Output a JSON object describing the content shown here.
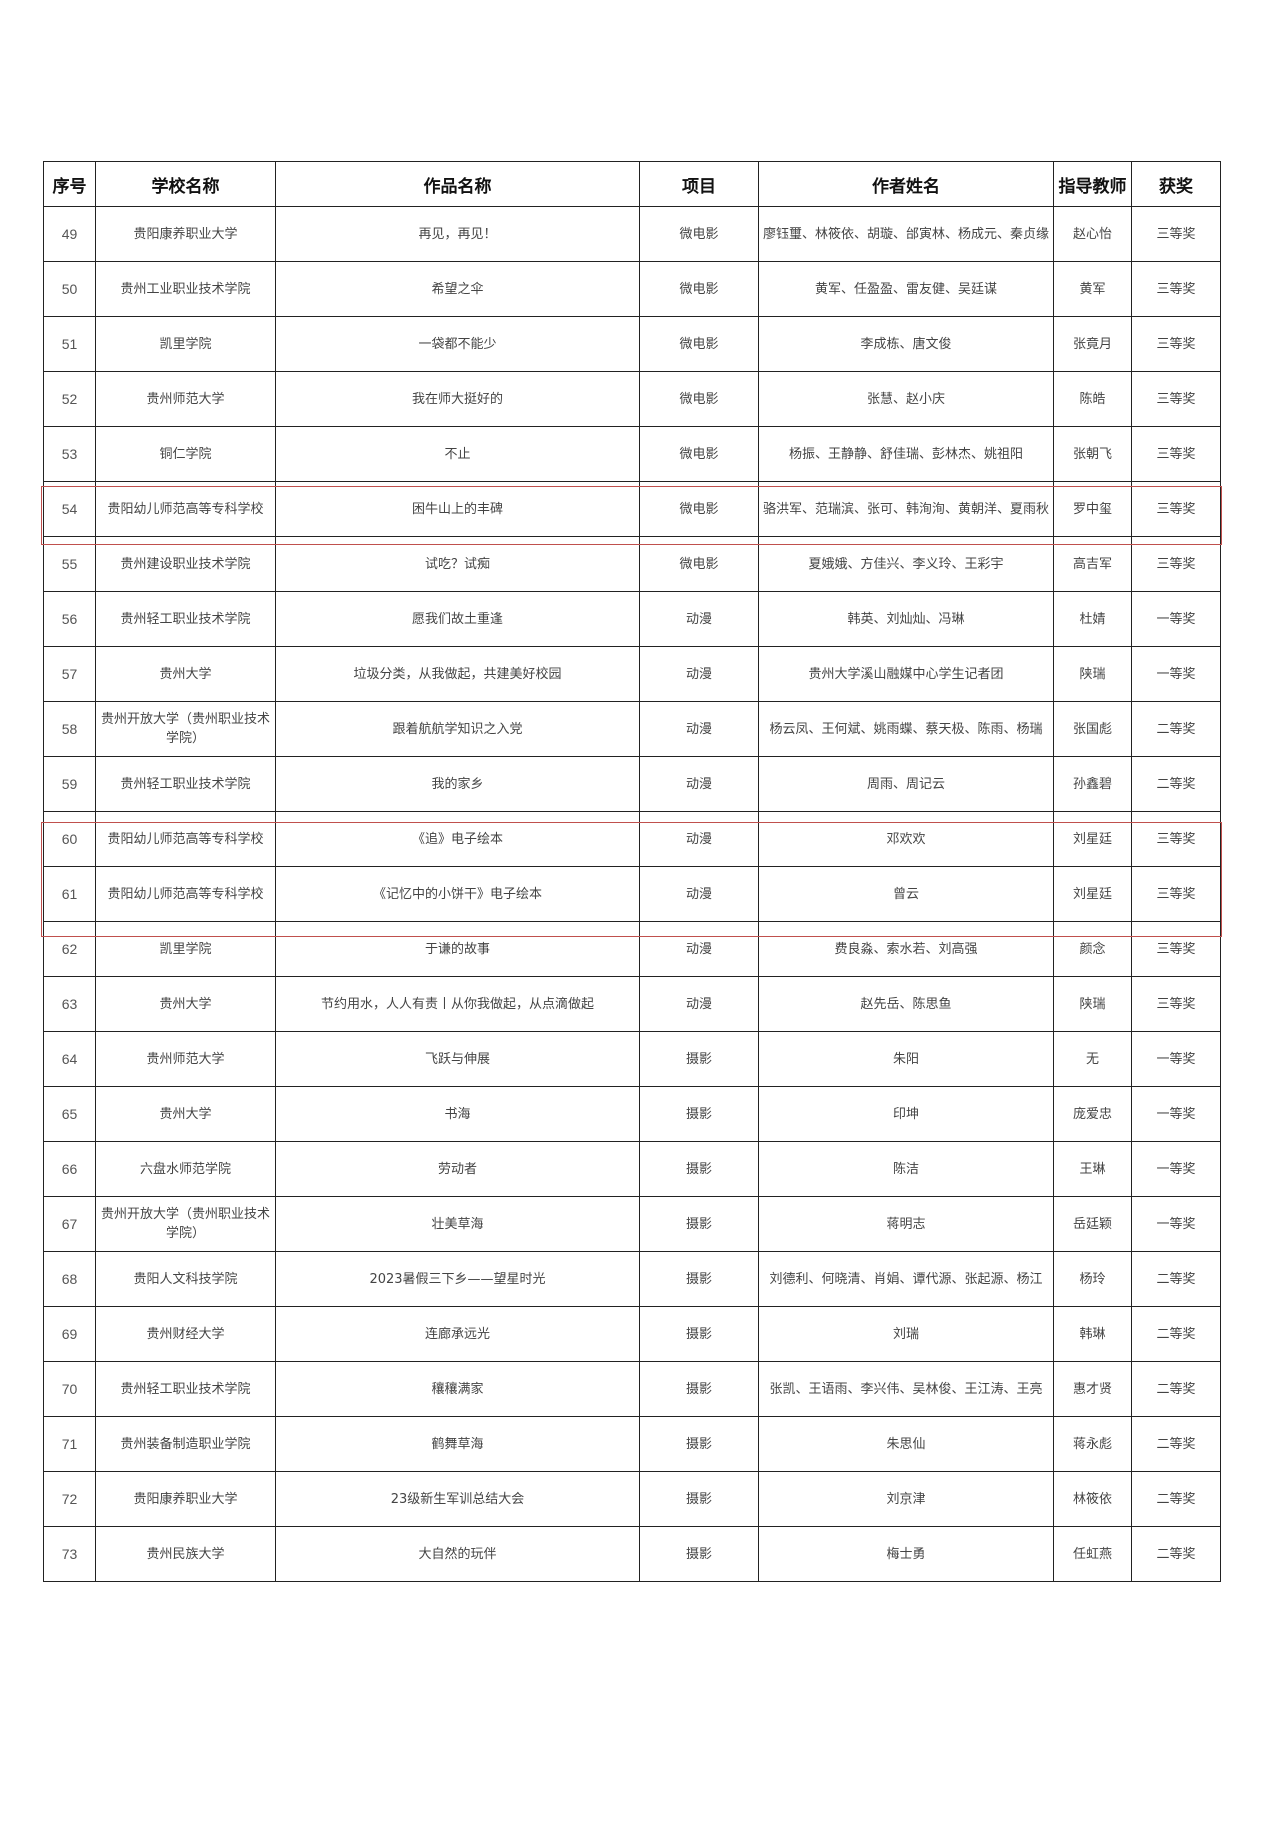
{
  "table": {
    "header": [
      "序号",
      "学校名称",
      "作品名称",
      "项目",
      "作者姓名",
      "指导教师",
      "获奖"
    ],
    "rows": [
      [
        49,
        "贵阳康养职业大学",
        "再见，再见！",
        "微电影",
        "廖钰璽、林筱依、胡璇、邰寅林、杨成元、秦贞缘",
        "赵心怡",
        "三等奖"
      ],
      [
        50,
        "贵州工业职业技术学院",
        "希望之伞",
        "微电影",
        "黄军、任盈盈、雷友健、吴廷谋",
        "黄军",
        "三等奖"
      ],
      [
        51,
        "凯里学院",
        "一袋都不能少",
        "微电影",
        "李成栋、唐文俊",
        "张竟月",
        "三等奖"
      ],
      [
        52,
        "贵州师范大学",
        "我在师大挺好的",
        "微电影",
        "张慧、赵小庆",
        "陈皓",
        "三等奖"
      ],
      [
        53,
        "铜仁学院",
        "不止",
        "微电影",
        "杨振、王静静、舒佳瑞、彭林杰、姚祖阳",
        "张朝飞",
        "三等奖"
      ],
      [
        54,
        "贵阳幼儿师范高等专科学校",
        "困牛山上的丰碑",
        "微电影",
        "骆洪军、范瑞滨、张可、韩洵洵、黄朝洋、夏雨秋",
        "罗中玺",
        "三等奖"
      ],
      [
        55,
        "贵州建设职业技术学院",
        "试吃？试痴",
        "微电影",
        "夏娥娥、方佳兴、李义玲、王彩宇",
        "高吉军",
        "三等奖"
      ],
      [
        56,
        "贵州轻工职业技术学院",
        "愿我们故土重逢",
        "动漫",
        "韩英、刘灿灿、冯琳",
        "杜婧",
        "一等奖"
      ],
      [
        57,
        "贵州大学",
        "垃圾分类，从我做起，共建美好校园",
        "动漫",
        "贵州大学溪山融媒中心学生记者团",
        "陕瑞",
        "一等奖"
      ],
      [
        58,
        "贵州开放大学（贵州职业技术学院）",
        "跟着航航学知识之入党",
        "动漫",
        "杨云凤、王何斌、姚雨蝶、蔡天极、陈雨、杨瑞",
        "张国彪",
        "二等奖"
      ],
      [
        59,
        "贵州轻工职业技术学院",
        "我的家乡",
        "动漫",
        "周雨、周记云",
        "孙鑫碧",
        "二等奖"
      ],
      [
        60,
        "贵阳幼儿师范高等专科学校",
        "《追》电子绘本",
        "动漫",
        "邓欢欢",
        "刘星廷",
        "三等奖"
      ],
      [
        61,
        "贵阳幼儿师范高等专科学校",
        "《记忆中的小饼干》电子绘本",
        "动漫",
        "曾云",
        "刘星廷",
        "三等奖"
      ],
      [
        62,
        "凯里学院",
        "于谦的故事",
        "动漫",
        "费良淼、索水若、刘高强",
        "颜念",
        "三等奖"
      ],
      [
        63,
        "贵州大学",
        "节约用水，人人有责丨从你我做起，从点滴做起",
        "动漫",
        "赵先岳、陈思鱼",
        "陕瑞",
        "三等奖"
      ],
      [
        64,
        "贵州师范大学",
        "飞跃与伸展",
        "摄影",
        "朱阳",
        "无",
        "一等奖"
      ],
      [
        65,
        "贵州大学",
        "书海",
        "摄影",
        "印坤",
        "庞爱忠",
        "一等奖"
      ],
      [
        66,
        "六盘水师范学院",
        "劳动者",
        "摄影",
        "陈洁",
        "王琳",
        "一等奖"
      ],
      [
        67,
        "贵州开放大学（贵州职业技术学院）",
        "壮美草海",
        "摄影",
        "蒋明志",
        "岳廷颖",
        "一等奖"
      ],
      [
        68,
        "贵阳人文科技学院",
        "2023暑假三下乡——望星时光",
        "摄影",
        "刘德利、何晓清、肖娟、谭代源、张起源、杨江",
        "杨玲",
        "二等奖"
      ],
      [
        69,
        "贵州财经大学",
        "连廊承远光",
        "摄影",
        "刘瑞",
        "韩琳",
        "二等奖"
      ],
      [
        70,
        "贵州轻工职业技术学院",
        "穰穰满家",
        "摄影",
        "张凯、王语雨、李兴伟、吴林俊、王江涛、王亮",
        "惠才贤",
        "二等奖"
      ],
      [
        71,
        "贵州装备制造职业学院",
        "鹤舞草海",
        "摄影",
        "朱思仙",
        "蒋永彪",
        "二等奖"
      ],
      [
        72,
        "贵阳康养职业大学",
        "23级新生军训总结大会",
        "摄影",
        "刘京津",
        "林筱依",
        "二等奖"
      ],
      [
        73,
        "贵州民族大学",
        "大自然的玩伴",
        "摄影",
        "梅士勇",
        "任虹燕",
        "二等奖"
      ]
    ]
  }
}
